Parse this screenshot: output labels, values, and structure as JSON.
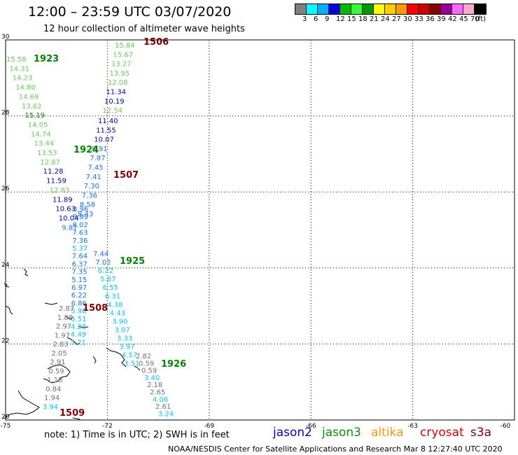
{
  "header": {
    "title": "12:00 – 23:59 UTC 03/07/2020",
    "subtitle": "12 hour collection of altimeter wave heights"
  },
  "legend": {
    "colors": [
      "#808080",
      "#00ffff",
      "#00b0ff",
      "#0000dd",
      "#00bb00",
      "#33ff33",
      "#009900",
      "#ffff00",
      "#ffcc00",
      "#ff9900",
      "#ff0000",
      "#cc0000",
      "#880000",
      "#990099",
      "#ff66ff",
      "#ffaacc",
      "#000000"
    ],
    "labels": [
      "3",
      "6",
      "9",
      "12",
      "15",
      "18",
      "21",
      "24",
      "27",
      "30",
      "33",
      "36",
      "39",
      "42",
      "45",
      "70"
    ],
    "unit": "(ft)"
  },
  "axes": {
    "lat_ticks": [
      "30",
      "28",
      "26",
      "24",
      "22",
      "20"
    ],
    "lon_ticks": [
      "-75",
      "-72",
      "-69",
      "-66",
      "-63",
      "-60"
    ]
  },
  "palette": {
    "gray": "#707070",
    "cyan": "#00c8ff",
    "blue": "#1a6ff0",
    "navy": "#0000b0",
    "lgreen": "#66cc55",
    "green": "#008800",
    "dred": "#880000"
  },
  "tracks": [
    {
      "label": "1506",
      "label_color": "dred",
      "values": [
        [
          "15.84",
          "lgreen"
        ],
        [
          "15.67",
          "lgreen"
        ],
        [
          "13.27",
          "lgreen"
        ],
        [
          "13.95",
          "lgreen"
        ],
        [
          "12.08",
          "lgreen"
        ],
        [
          "11.34",
          "navy"
        ],
        [
          "10.19",
          "navy"
        ],
        [
          "12.54",
          "lgreen"
        ]
      ]
    },
    {
      "label": "1923",
      "label_color": "green",
      "values": [
        [
          "15.58",
          "lgreen"
        ],
        [
          "14.31",
          "lgreen"
        ],
        [
          "14.23",
          "lgreen"
        ],
        [
          "14.80",
          "lgreen"
        ],
        [
          "14.69",
          "lgreen"
        ],
        [
          "13.62",
          "lgreen"
        ],
        [
          "15.19",
          "green"
        ],
        [
          "14.05",
          "lgreen"
        ],
        [
          "14.74",
          "lgreen"
        ],
        [
          "13.44",
          "lgreen"
        ],
        [
          "13.53",
          "lgreen"
        ],
        [
          "12.87",
          "lgreen"
        ],
        [
          "11.28",
          "navy"
        ],
        [
          "11.59",
          "navy"
        ],
        [
          "12.83",
          "lgreen"
        ],
        [
          "11.89",
          "navy"
        ],
        [
          "10.63",
          "navy"
        ],
        [
          "10.04",
          "navy"
        ],
        [
          "9.87",
          "blue"
        ]
      ]
    },
    {
      "label": "1507",
      "label_color": "dred",
      "values": [
        [
          "11.40",
          "navy"
        ],
        [
          "11.55",
          "navy"
        ],
        [
          "10.07",
          "navy"
        ],
        [
          "8.91",
          "blue"
        ],
        [
          "7.87",
          "blue"
        ],
        [
          "7.45",
          "blue"
        ],
        [
          "7.41",
          "blue"
        ],
        [
          "7.30",
          "blue"
        ],
        [
          "7.36",
          "blue"
        ],
        [
          "8.58",
          "blue"
        ],
        [
          "8.43",
          "blue"
        ]
      ]
    },
    {
      "label": "1924",
      "label_color": "green",
      "values": [
        [
          "8.96",
          "blue"
        ],
        [
          "8.89",
          "blue"
        ],
        [
          "8.02",
          "blue"
        ],
        [
          "7.63",
          "blue"
        ],
        [
          "7.36",
          "blue"
        ],
        [
          "5.37",
          "cyan"
        ],
        [
          "7.64",
          "blue"
        ],
        [
          "6.37",
          "blue"
        ],
        [
          "7.35",
          "blue"
        ],
        [
          "5.15",
          "blue"
        ],
        [
          "6.97",
          "blue"
        ],
        [
          "6.22",
          "blue"
        ],
        [
          "6.86",
          "blue"
        ],
        [
          "5.98",
          "cyan"
        ],
        [
          "5.51",
          "cyan"
        ],
        [
          "4.26",
          "cyan"
        ],
        [
          "4.49",
          "cyan"
        ],
        [
          "3.21",
          "cyan"
        ]
      ]
    },
    {
      "label": "1925",
      "label_color": "green",
      "values": [
        [
          "7.44",
          "blue"
        ],
        [
          "7.02",
          "blue"
        ],
        [
          "6.22",
          "cyan"
        ],
        [
          "5.87",
          "cyan"
        ],
        [
          "6.55",
          "cyan"
        ],
        [
          "6.31",
          "cyan"
        ],
        [
          "4.38",
          "cyan"
        ],
        [
          "4.43",
          "cyan"
        ],
        [
          "3.90",
          "cyan"
        ],
        [
          "3.07",
          "cyan"
        ],
        [
          "3.33",
          "cyan"
        ],
        [
          "3.97",
          "cyan"
        ],
        [
          "4.57",
          "cyan"
        ],
        [
          "3.51",
          "cyan"
        ]
      ]
    },
    {
      "label": "1508",
      "label_color": "dred",
      "values": [
        [
          "2.87",
          "gray"
        ],
        [
          "1.86",
          "gray"
        ],
        [
          "2.97",
          "gray"
        ],
        [
          "1.97",
          "gray"
        ],
        [
          "2.83",
          "gray"
        ],
        [
          "2.05",
          "gray"
        ],
        [
          "2.91",
          "gray"
        ],
        [
          "0.59",
          "gray"
        ],
        [
          "1.18",
          "gray"
        ],
        [
          "0.84",
          "gray"
        ],
        [
          "1.94",
          "gray"
        ],
        [
          "3.94",
          "cyan"
        ]
      ]
    },
    {
      "label": "1509",
      "label_color": "dred",
      "values": []
    },
    {
      "label": "1926",
      "label_color": "green",
      "values": [
        [
          "2.82",
          "gray"
        ],
        [
          "0.59",
          "gray"
        ],
        [
          "0.59",
          "gray"
        ],
        [
          "3.40",
          "cyan"
        ],
        [
          "2.18",
          "gray"
        ],
        [
          "2.65",
          "gray"
        ],
        [
          "4.06",
          "cyan"
        ],
        [
          "2.61",
          "gray"
        ],
        [
          "3.24",
          "cyan"
        ]
      ]
    }
  ],
  "footer": {
    "note": "note:  1) Time is in UTC;  2) SWH is in feet",
    "satellites": [
      {
        "name": "jason2",
        "color": "#0000dd"
      },
      {
        "name": "jason3",
        "color": "#009900"
      },
      {
        "name": "altika",
        "color": "#ff9900"
      },
      {
        "name": "cryosat",
        "color": "#dd0000"
      },
      {
        "name": "s3a",
        "color": "#880000"
      }
    ],
    "credit": "NOAA/NESDIS Center for Satellite Applications and Research     Mar  8 12:27:40 UTC 2020"
  }
}
